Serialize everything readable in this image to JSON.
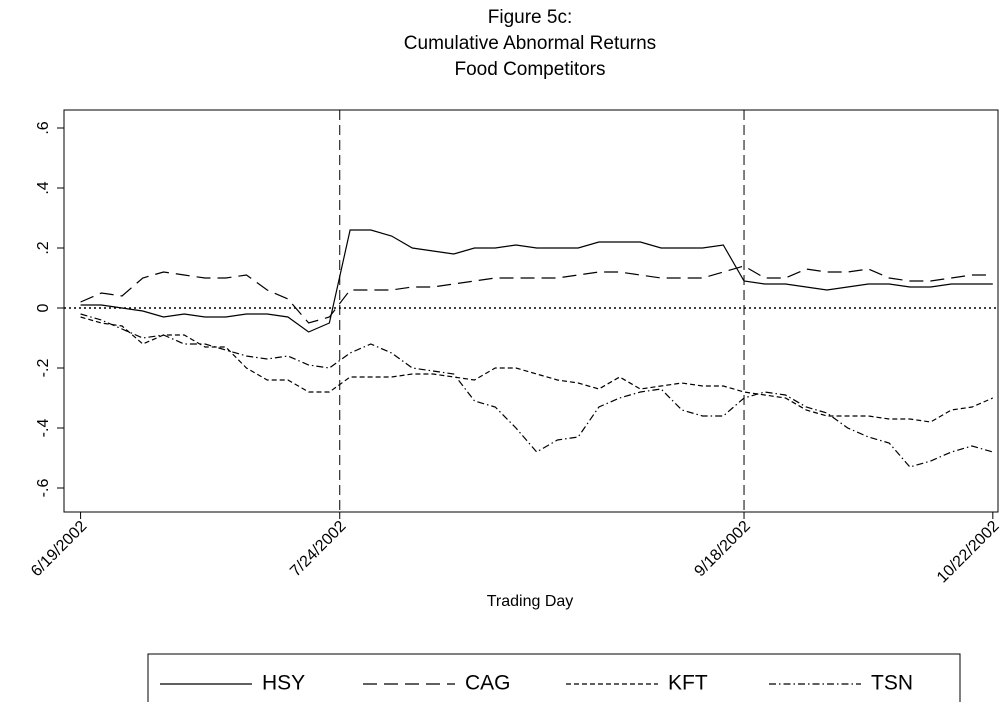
{
  "chart_data": {
    "type": "line",
    "title": [
      "Figure 5c:",
      "Cumulative Abnormal Returns",
      "Food Competitors"
    ],
    "x_label": "Trading Day",
    "x": [
      0,
      2,
      4,
      6,
      8,
      10,
      12,
      14,
      16,
      18,
      20,
      22,
      24,
      26,
      28,
      30,
      32,
      34,
      36,
      38,
      40,
      42,
      44,
      46,
      48,
      50,
      52,
      54,
      56,
      58,
      60,
      62,
      64,
      66,
      68,
      70,
      72,
      74,
      76,
      78,
      80,
      82,
      84,
      86,
      88
    ],
    "series": [
      {
        "name": "HSY",
        "color": "#000000",
        "style": "solid",
        "values": [
          0.01,
          0.01,
          0,
          -0.01,
          -0.03,
          -0.02,
          -0.03,
          -0.03,
          -0.02,
          -0.02,
          -0.03,
          -0.08,
          -0.05,
          0.26,
          0.26,
          0.24,
          0.2,
          0.19,
          0.18,
          0.2,
          0.2,
          0.21,
          0.2,
          0.2,
          0.2,
          0.22,
          0.22,
          0.22,
          0.2,
          0.2,
          0.2,
          0.21,
          0.09,
          0.08,
          0.08,
          0.07,
          0.06,
          0.07,
          0.08,
          0.08,
          0.07,
          0.07,
          0.08,
          0.08,
          0.08
        ]
      },
      {
        "name": "CAG",
        "color": "#000000",
        "style": "dash",
        "values": [
          0.02,
          0.05,
          0.04,
          0.1,
          0.12,
          0.11,
          0.1,
          0.1,
          0.11,
          0.06,
          0.03,
          -0.05,
          -0.03,
          0.06,
          0.06,
          0.06,
          0.07,
          0.07,
          0.08,
          0.09,
          0.1,
          0.1,
          0.1,
          0.1,
          0.11,
          0.12,
          0.12,
          0.11,
          0.1,
          0.1,
          0.1,
          0.12,
          0.14,
          0.1,
          0.1,
          0.13,
          0.12,
          0.12,
          0.13,
          0.1,
          0.09,
          0.09,
          0.1,
          0.11,
          0.11
        ]
      },
      {
        "name": "KFT",
        "color": "#000000",
        "style": "shortdash",
        "values": [
          -0.03,
          -0.05,
          -0.06,
          -0.12,
          -0.09,
          -0.09,
          -0.13,
          -0.13,
          -0.2,
          -0.24,
          -0.24,
          -0.28,
          -0.28,
          -0.23,
          -0.23,
          -0.23,
          -0.22,
          -0.22,
          -0.23,
          -0.24,
          -0.2,
          -0.2,
          -0.22,
          -0.24,
          -0.25,
          -0.27,
          -0.23,
          -0.27,
          -0.26,
          -0.25,
          -0.26,
          -0.26,
          -0.28,
          -0.29,
          -0.3,
          -0.34,
          -0.36,
          -0.36,
          -0.36,
          -0.37,
          -0.37,
          -0.38,
          -0.34,
          -0.33,
          -0.3
        ]
      },
      {
        "name": "TSN",
        "color": "#000000",
        "style": "dashdot",
        "values": [
          -0.02,
          -0.04,
          -0.07,
          -0.1,
          -0.09,
          -0.12,
          -0.12,
          -0.14,
          -0.16,
          -0.17,
          -0.16,
          -0.19,
          -0.2,
          -0.15,
          -0.12,
          -0.15,
          -0.2,
          -0.21,
          -0.22,
          -0.31,
          -0.33,
          -0.4,
          -0.48,
          -0.44,
          -0.43,
          -0.33,
          -0.3,
          -0.28,
          -0.27,
          -0.34,
          -0.36,
          -0.36,
          -0.3,
          -0.28,
          -0.29,
          -0.33,
          -0.35,
          -0.4,
          -0.43,
          -0.45,
          -0.53,
          -0.51,
          -0.48,
          -0.46,
          -0.48
        ]
      }
    ],
    "xlim": [
      -1.6,
      88.5
    ],
    "xticks": [
      {
        "value": 0,
        "label": "6/19/2002"
      },
      {
        "value": 25,
        "label": "7/24/2002"
      },
      {
        "value": 64,
        "label": "9/18/2002"
      },
      {
        "value": 88,
        "label": "10/22/2002"
      }
    ],
    "ylim": [
      -0.68,
      0.66
    ],
    "yticks": [
      {
        "value": -0.6,
        "label": "-.6"
      },
      {
        "value": -0.4,
        "label": "-.4"
      },
      {
        "value": -0.2,
        "label": "-.2"
      },
      0,
      {
        "value": 0.2,
        "label": ".2"
      },
      {
        "value": 0.4,
        "label": ".4"
      },
      {
        "value": 0.6,
        "label": ".6"
      }
    ],
    "vlines": [
      25,
      64
    ],
    "hline": 0,
    "legend": "bottom"
  }
}
